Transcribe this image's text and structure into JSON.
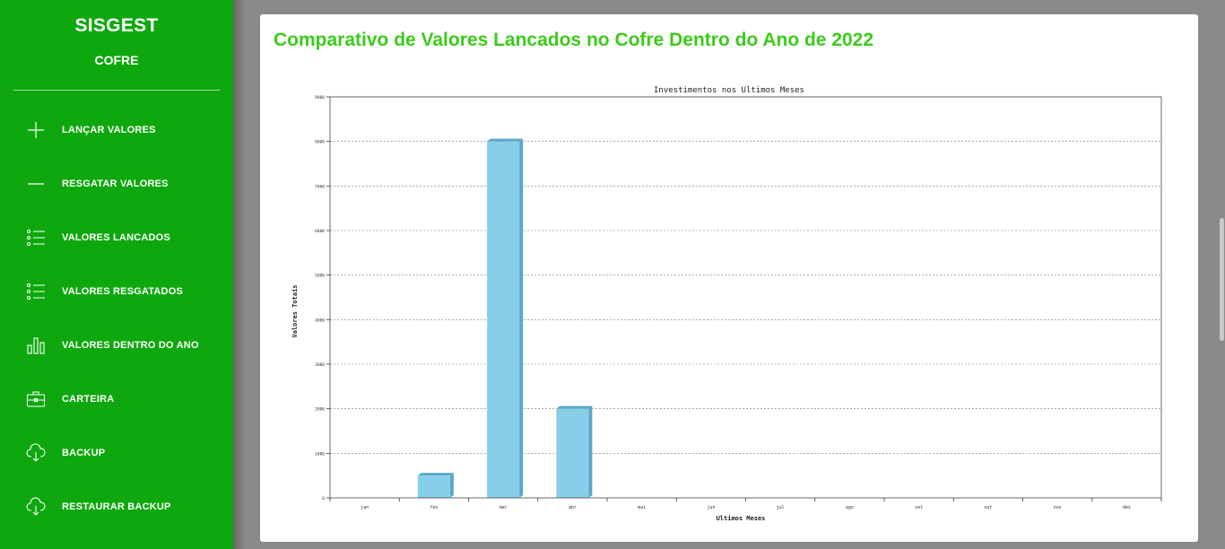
{
  "sidebar": {
    "brand": "SISGEST",
    "subbrand": "COFRE",
    "items": [
      {
        "label": "LANÇAR VALORES",
        "icon": "plus-icon"
      },
      {
        "label": "RESGATAR VALORES",
        "icon": "minus-icon"
      },
      {
        "label": "VALORES LANCADOS",
        "icon": "list-icon"
      },
      {
        "label": "VALORES RESGATADOS",
        "icon": "list-icon"
      },
      {
        "label": "VALORES DENTRO DO ANO",
        "icon": "bar-chart-icon"
      },
      {
        "label": "CARTEIRA",
        "icon": "briefcase-icon"
      },
      {
        "label": "BACKUP",
        "icon": "cloud-download-icon"
      },
      {
        "label": "RESTAURAR BACKUP",
        "icon": "cloud-download-icon"
      }
    ]
  },
  "main": {
    "title": "Comparativo de Valores Lancados no Cofre Dentro do Ano de 2022"
  },
  "colors": {
    "sidebar": "#0ea80e",
    "title": "#3ccb1a",
    "bar_fill": "#87ceeb",
    "bar_side": "#5aa7c6"
  },
  "chart_data": {
    "type": "bar",
    "title": "Investimentos nos Ultimos Meses",
    "xlabel": "Ultimos Meses",
    "ylabel": "Valores Totais",
    "categories": [
      "jan",
      "fev",
      "mar",
      "abr",
      "mai",
      "jun",
      "jul",
      "ago",
      "set",
      "out",
      "nov",
      "dez"
    ],
    "values": [
      0,
      500,
      8000,
      2000,
      0,
      0,
      0,
      0,
      0,
      0,
      0,
      0
    ],
    "ylim": [
      0,
      9000
    ],
    "yticks": [
      0,
      1000,
      2000,
      3000,
      4000,
      5000,
      6000,
      7000,
      8000,
      9000
    ],
    "ytick_labels": [
      "0",
      "1000",
      "2000",
      "3000",
      "4000",
      "5000",
      "6000",
      "7000",
      "8000",
      "9000"
    ],
    "grid": true
  }
}
